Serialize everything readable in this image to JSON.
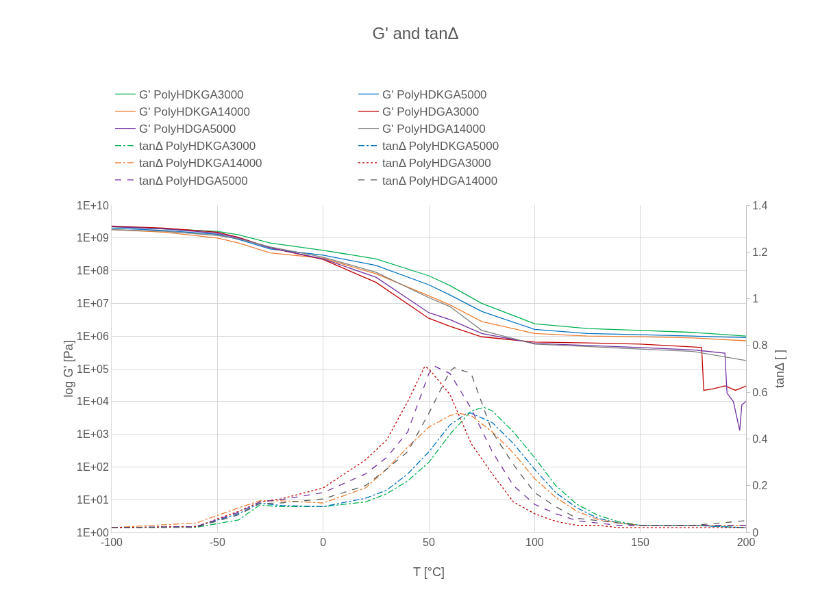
{
  "chart_data": {
    "type": "line",
    "title": "G' and tanΔ",
    "xlabel": "T [°C]",
    "ylabel": "log G' [Pa]",
    "y2label": "tanΔ [ ]",
    "log": "y",
    "grid": true,
    "legend": "top",
    "marker": "none",
    "xlim": [
      -100,
      200
    ],
    "xticks": [
      -100,
      -50,
      0,
      50,
      100,
      150,
      200
    ],
    "ylim": [
      1,
      10000000000
    ],
    "yticks": [
      {
        "value": 1,
        "label": "1E+00"
      },
      {
        "value": 10,
        "label": "1E+01"
      },
      {
        "value": 100,
        "label": "1E+02"
      },
      {
        "value": 1000,
        "label": "1E+03"
      },
      {
        "value": 10000,
        "label": "1E+04"
      },
      {
        "value": 100000,
        "label": "1E+05"
      },
      {
        "value": 1000000,
        "label": "1E+06"
      },
      {
        "value": 10000000,
        "label": "1E+07"
      },
      {
        "value": 100000000,
        "label": "1E+08"
      },
      {
        "value": 1000000000,
        "label": "1E+09"
      },
      {
        "value": 10000000000,
        "label": "1E+10"
      }
    ],
    "y2lim": [
      0,
      1.4
    ],
    "y2ticks": [
      0,
      0.2,
      0.4,
      0.6,
      0.8,
      1,
      1.2,
      1.4
    ],
    "x": [
      -100,
      -75,
      -50,
      -40,
      -25,
      0,
      25,
      50,
      60,
      75,
      100,
      125,
      150,
      175,
      200
    ],
    "series": [
      {
        "name": "G' PolyHDKGA3000",
        "color": "#00b050",
        "line_style": "solid",
        "values": [
          2200000000,
          1900000000,
          1600000000,
          1250000000,
          700000000,
          420000000,
          230000000,
          70000000,
          35000000,
          10000000,
          2400000,
          1700000,
          1500000,
          1300000,
          1000000
        ]
      },
      {
        "name": "G' PolyHDKGA5000",
        "color": "#0070c0",
        "line_style": "solid",
        "values": [
          2000000000,
          1700000000,
          1300000000,
          900000000,
          460000000,
          300000000,
          145000000,
          37000000,
          18000000,
          5700000,
          1600000,
          1200000,
          1100000,
          1000000,
          900000
        ]
      },
      {
        "name": "G' PolyHDKGA14000",
        "color": "#ed7d31",
        "line_style": "solid",
        "values": [
          1800000000,
          1500000000,
          1000000000,
          700000000,
          350000000,
          240000000,
          80000000,
          17000000,
          9000000,
          2800000,
          1200000,
          1000000,
          960000,
          880000,
          720000
        ]
      },
      {
        "name": "G' PolyHDGA3000",
        "color": "#c00000",
        "line_style": "solid",
        "x": [
          -100,
          -75,
          -50,
          -40,
          -25,
          0,
          25,
          50,
          60,
          75,
          100,
          125,
          150,
          179,
          180,
          185,
          190,
          195,
          200
        ],
        "values": [
          2300000000,
          2000000000,
          1500000000,
          1050000000,
          500000000,
          220000000,
          44000000,
          3500000,
          2000000,
          950000,
          660000,
          620000,
          570000,
          450000,
          22000,
          25000,
          30000,
          22000,
          30000
        ]
      },
      {
        "name": "G' PolyHDGA5000",
        "color": "#7030a0",
        "line_style": "solid",
        "x": [
          -100,
          -75,
          -50,
          -40,
          -25,
          0,
          25,
          50,
          60,
          75,
          100,
          125,
          150,
          175,
          190,
          191,
          194,
          197,
          198,
          200
        ],
        "values": [
          2200000000,
          1900000000,
          1400000000,
          1000000000,
          500000000,
          230000000,
          63000000,
          5200000,
          3200000,
          1200000,
          600000,
          520000,
          450000,
          380000,
          300000,
          18000,
          10000,
          1300,
          8000,
          10000
        ]
      },
      {
        "name": "G' PolyHDGA14000",
        "color": "#7f7f7f",
        "line_style": "solid",
        "values": [
          1800000000,
          1600000000,
          1200000000,
          950000000,
          530000000,
          260000000,
          90000000,
          15000000,
          8000000,
          1500000,
          570000,
          480000,
          400000,
          340000,
          180000
        ]
      },
      {
        "name": "tanΔ PolyHDKGA3000",
        "color": "#00b050",
        "axis": "y2",
        "line_style": "dashdot",
        "x": [
          -100,
          -60,
          -40,
          -30,
          -20,
          0,
          20,
          30,
          40,
          50,
          60,
          70,
          76,
          80,
          90,
          100,
          110,
          120,
          130,
          140,
          150,
          175,
          200
        ],
        "values": [
          0.02,
          0.022,
          0.053,
          0.117,
          0.11,
          0.11,
          0.13,
          0.165,
          0.22,
          0.3,
          0.42,
          0.52,
          0.535,
          0.52,
          0.43,
          0.32,
          0.2,
          0.12,
          0.073,
          0.045,
          0.03,
          0.03,
          0.02
        ]
      },
      {
        "name": "tanΔ PolyHDKGA5000",
        "color": "#0070c0",
        "axis": "y2",
        "line_style": "dashdot",
        "x": [
          -100,
          -60,
          -40,
          -30,
          -20,
          0,
          20,
          30,
          40,
          50,
          60,
          68,
          70,
          80,
          90,
          100,
          110,
          120,
          130,
          140,
          150,
          175,
          200
        ],
        "values": [
          0.02,
          0.025,
          0.08,
          0.125,
          0.115,
          0.11,
          0.146,
          0.18,
          0.25,
          0.345,
          0.46,
          0.51,
          0.51,
          0.47,
          0.38,
          0.27,
          0.17,
          0.105,
          0.06,
          0.04,
          0.03,
          0.03,
          0.02
        ]
      },
      {
        "name": "tanΔ PolyHDKGA14000",
        "color": "#ed7d31",
        "axis": "y2",
        "line_style": "dashdot",
        "x": [
          -100,
          -60,
          -40,
          -30,
          -20,
          0,
          20,
          30,
          40,
          50,
          60,
          64,
          70,
          80,
          90,
          100,
          110,
          120,
          130,
          140,
          150,
          175,
          200
        ],
        "values": [
          0.02,
          0.04,
          0.105,
          0.135,
          0.135,
          0.126,
          0.19,
          0.27,
          0.365,
          0.45,
          0.5,
          0.51,
          0.5,
          0.43,
          0.34,
          0.23,
          0.15,
          0.09,
          0.055,
          0.04,
          0.03,
          0.03,
          0.03
        ]
      },
      {
        "name": "tanΔ PolyHDGA3000",
        "color": "#c00000",
        "axis": "y2",
        "line_style": "dotted",
        "x": [
          -100,
          -60,
          -40,
          -30,
          -20,
          0,
          20,
          30,
          40,
          48,
          50,
          60,
          70,
          80,
          90,
          100,
          110,
          120,
          130,
          140,
          150,
          175,
          200
        ],
        "values": [
          0.02,
          0.025,
          0.09,
          0.13,
          0.143,
          0.19,
          0.31,
          0.395,
          0.56,
          0.71,
          0.7,
          0.59,
          0.38,
          0.25,
          0.13,
          0.08,
          0.047,
          0.03,
          0.03,
          0.02,
          0.02,
          0.02,
          0.02
        ]
      },
      {
        "name": "tanΔ PolyHDGA5000",
        "color": "#7030a0",
        "axis": "y2",
        "line_style": "dashed",
        "x": [
          -100,
          -60,
          -40,
          -30,
          -20,
          0,
          20,
          30,
          40,
          50,
          53,
          60,
          70,
          80,
          90,
          100,
          110,
          120,
          130,
          140,
          150,
          175,
          200
        ],
        "values": [
          0.02,
          0.025,
          0.085,
          0.13,
          0.14,
          0.17,
          0.25,
          0.32,
          0.43,
          0.68,
          0.71,
          0.68,
          0.53,
          0.345,
          0.2,
          0.12,
          0.08,
          0.05,
          0.04,
          0.03,
          0.03,
          0.03,
          0.03
        ]
      },
      {
        "name": "tanΔ PolyHDGA14000",
        "color": "#595959",
        "axis": "y2",
        "line_style": "dashed",
        "x": [
          -100,
          -60,
          -40,
          -30,
          -20,
          0,
          20,
          30,
          40,
          50,
          60,
          62,
          70,
          80,
          90,
          100,
          110,
          120,
          130,
          140,
          150,
          175,
          200
        ],
        "values": [
          0.02,
          0.022,
          0.075,
          0.123,
          0.126,
          0.143,
          0.2,
          0.27,
          0.345,
          0.51,
          0.69,
          0.705,
          0.68,
          0.43,
          0.29,
          0.17,
          0.11,
          0.06,
          0.05,
          0.04,
          0.03,
          0.03,
          0.05
        ]
      }
    ]
  }
}
